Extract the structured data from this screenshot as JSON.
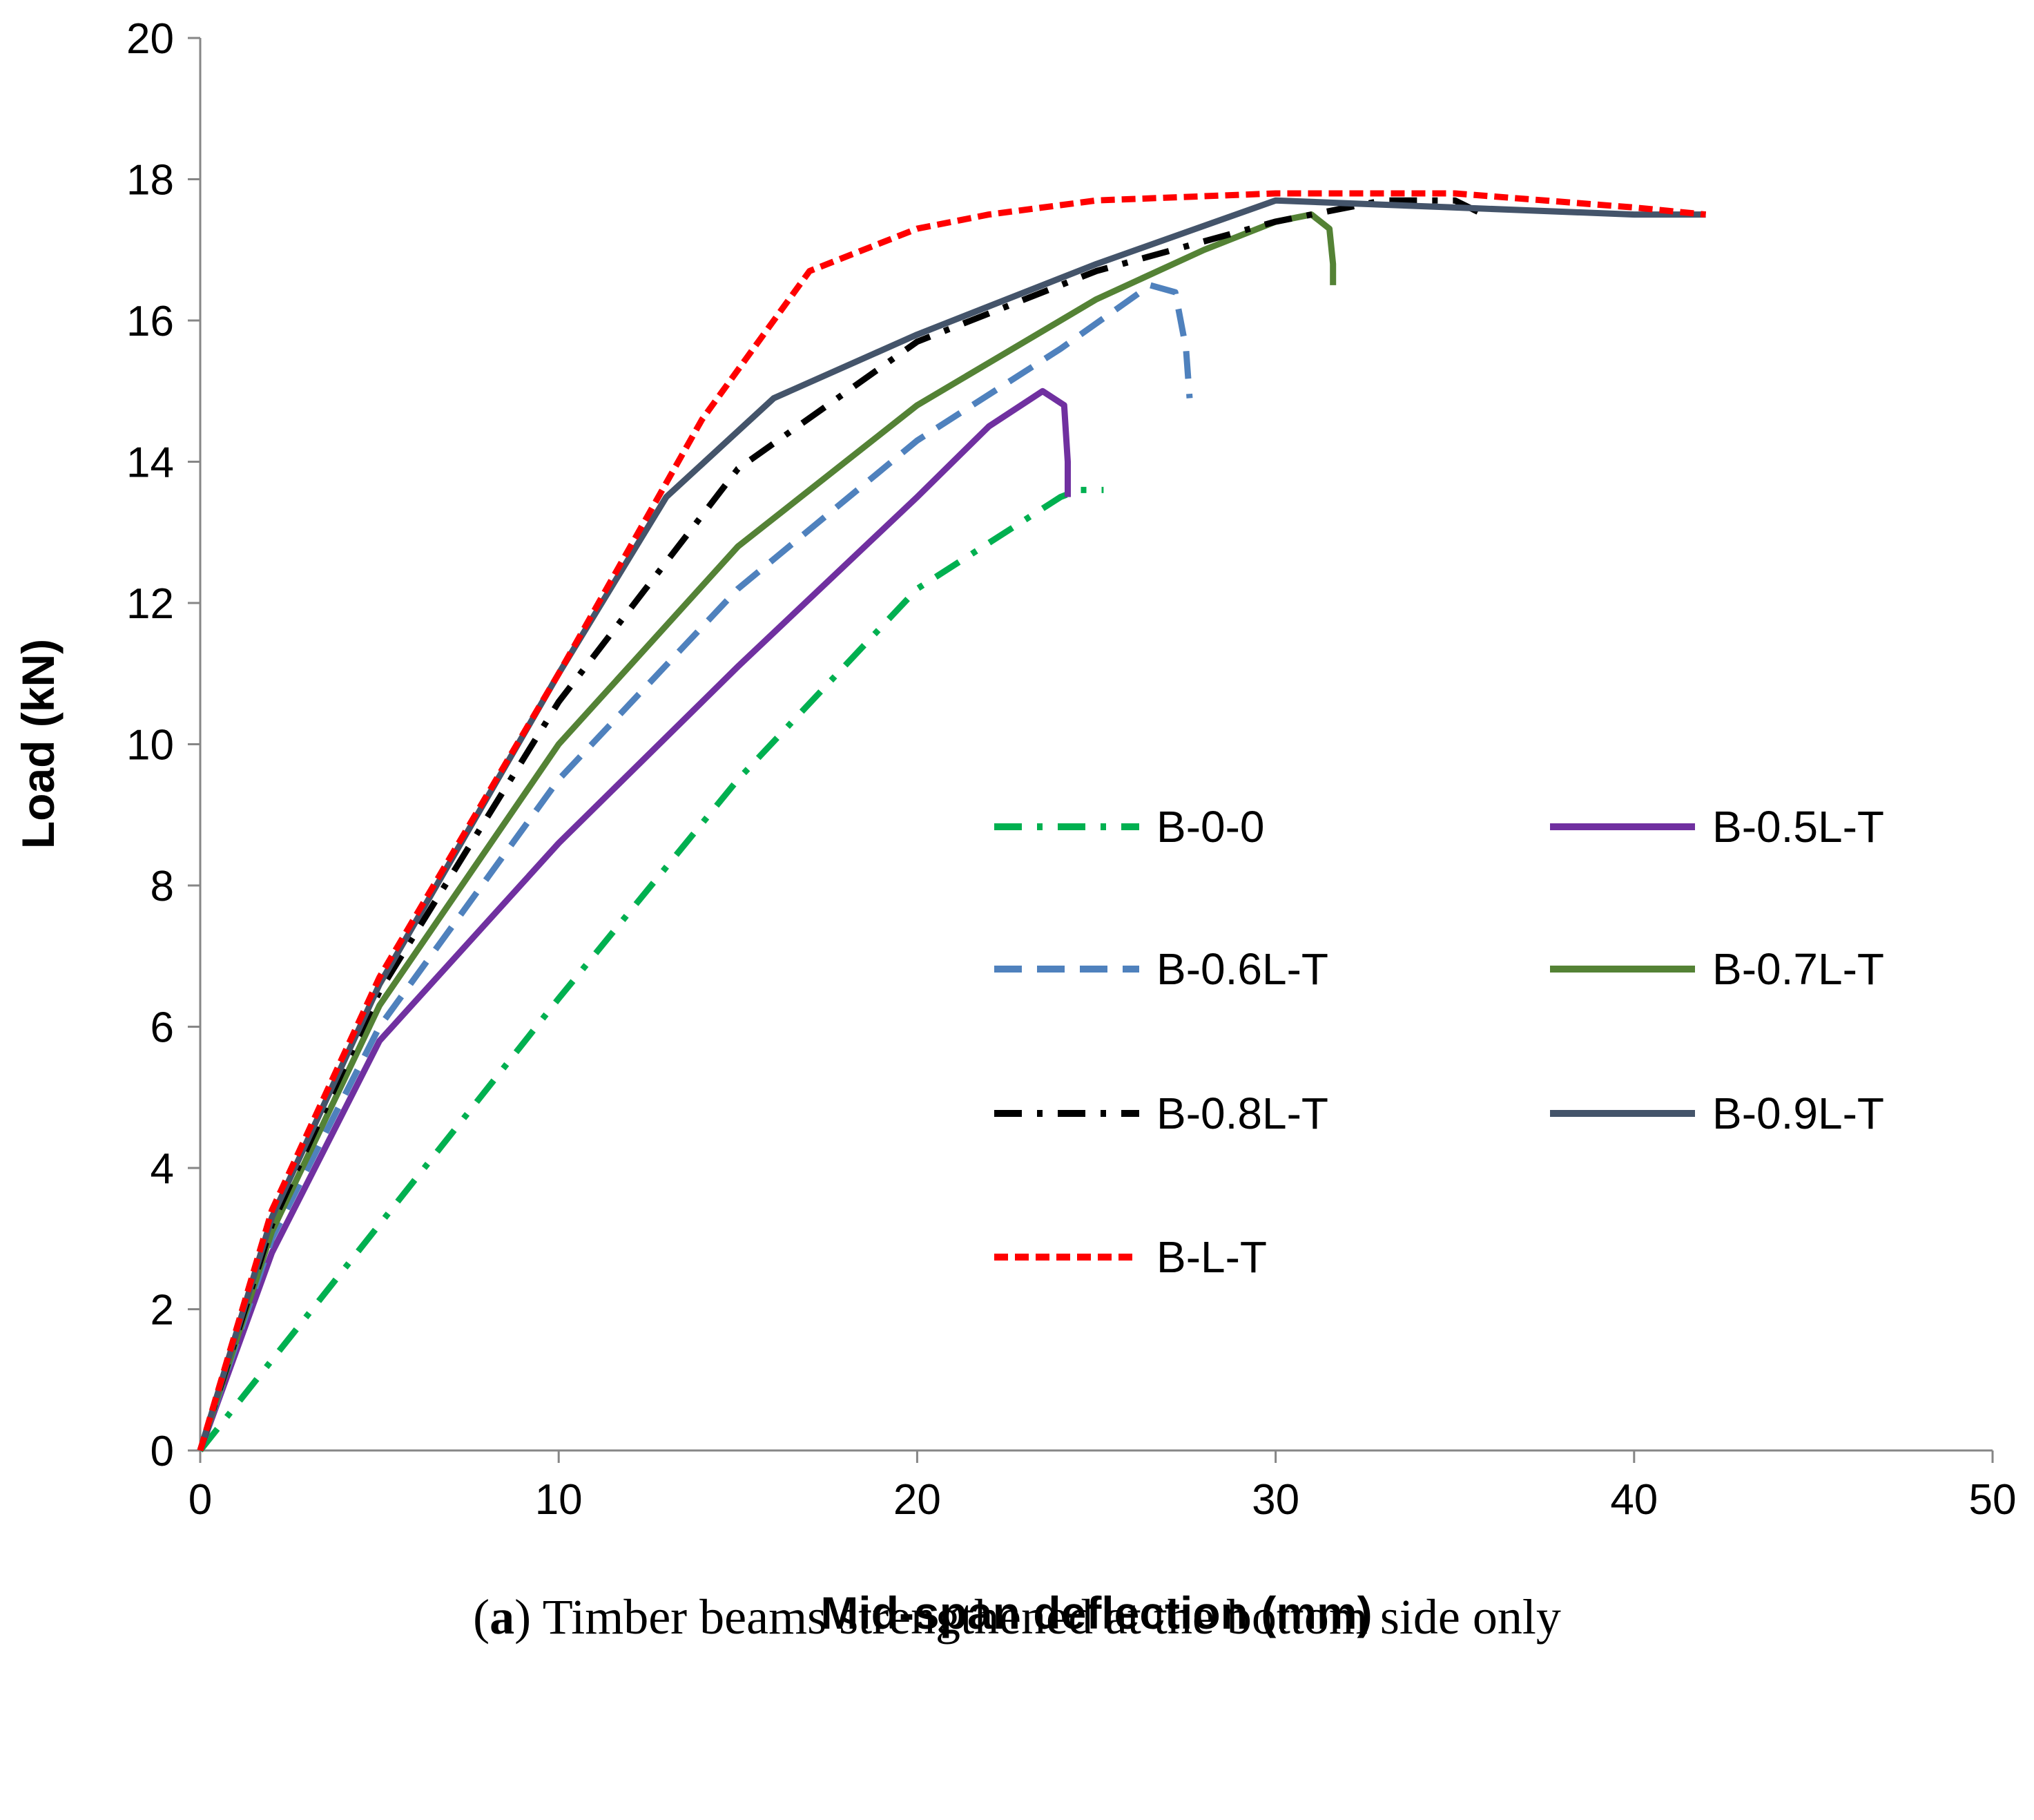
{
  "chart_data": {
    "type": "line",
    "title": "",
    "xlabel": "Mid-span deflection (mm)",
    "ylabel": "Load (kN)",
    "xlim": [
      0,
      50
    ],
    "ylim": [
      0,
      20
    ],
    "xticks": [
      0,
      10,
      20,
      30,
      40,
      50
    ],
    "yticks": [
      0,
      2,
      4,
      6,
      8,
      10,
      12,
      14,
      16,
      18,
      20
    ],
    "grid": false,
    "legend_position": "center-right",
    "series": [
      {
        "name": "B-0-0",
        "color": "#00b050",
        "dash": "dashdot",
        "x": [
          0,
          5,
          10,
          15,
          20,
          24,
          24.5,
          25.2
        ],
        "y": [
          0,
          3.2,
          6.4,
          9.5,
          12.2,
          13.5,
          13.6,
          13.6
        ]
      },
      {
        "name": "B-0.5L-T",
        "color": "#7030a0",
        "dash": "solid",
        "x": [
          0,
          2,
          5,
          10,
          15,
          20,
          22,
          23.5,
          24.1,
          24.2,
          24.2
        ],
        "y": [
          0,
          2.8,
          5.8,
          8.6,
          11.1,
          13.5,
          14.5,
          15.0,
          14.8,
          14.0,
          13.5
        ]
      },
      {
        "name": "B-0.6L-T",
        "color": "#4f81bd",
        "dash": "dashed",
        "x": [
          0,
          2,
          5,
          10,
          15,
          20,
          24,
          26.5,
          27.2,
          27.5,
          27.6
        ],
        "y": [
          0,
          3.0,
          6.0,
          9.5,
          12.2,
          14.3,
          15.6,
          16.5,
          16.4,
          15.6,
          14.9
        ]
      },
      {
        "name": "B-0.7L-T",
        "color": "#548235",
        "dash": "solid",
        "x": [
          0,
          2,
          5,
          10,
          15,
          20,
          25,
          28,
          30,
          31,
          31.5,
          31.6,
          31.6
        ],
        "y": [
          0,
          3.1,
          6.3,
          10.0,
          12.8,
          14.8,
          16.3,
          17.0,
          17.4,
          17.5,
          17.3,
          16.8,
          16.5
        ]
      },
      {
        "name": "B-0.8L-T",
        "color": "#000000",
        "dash": "dashdot",
        "x": [
          0,
          2,
          5,
          10,
          15,
          20,
          25,
          30,
          33,
          35,
          35.8
        ],
        "y": [
          0,
          3.2,
          6.5,
          10.6,
          13.9,
          15.7,
          16.7,
          17.4,
          17.7,
          17.7,
          17.5
        ]
      },
      {
        "name": "B-0.9L-T",
        "color": "#44546a",
        "dash": "solid",
        "x": [
          0,
          2,
          5,
          10,
          13,
          16,
          20,
          25,
          30,
          35,
          40,
          42
        ],
        "y": [
          0,
          3.3,
          6.6,
          11.0,
          13.5,
          14.9,
          15.8,
          16.8,
          17.7,
          17.6,
          17.5,
          17.5
        ]
      },
      {
        "name": "B-L-T",
        "color": "#ff0000",
        "dash": "dotted",
        "x": [
          0,
          2,
          5,
          10,
          14,
          17,
          20,
          22,
          25,
          30,
          35,
          40,
          42
        ],
        "y": [
          0,
          3.4,
          6.7,
          11.0,
          14.6,
          16.7,
          17.3,
          17.5,
          17.7,
          17.8,
          17.8,
          17.6,
          17.5
        ]
      }
    ]
  },
  "caption": {
    "label": "a",
    "text": " Timber beams strengthened at the bottom side only"
  }
}
